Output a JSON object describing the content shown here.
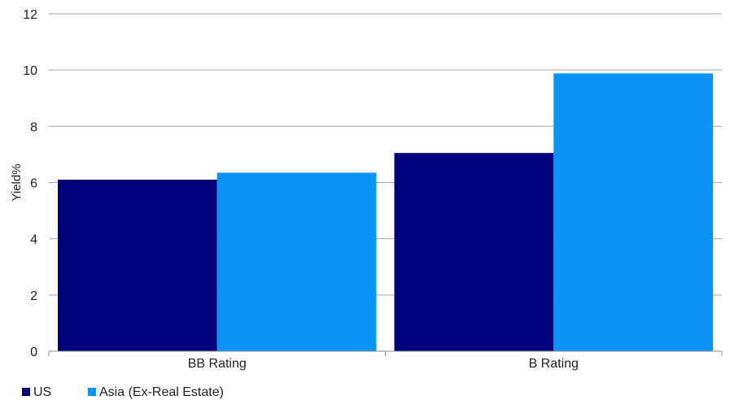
{
  "chart_data": {
    "type": "bar",
    "categories": [
      "BB Rating",
      "B Rating"
    ],
    "series": [
      {
        "name": "US",
        "values": [
          6.1,
          7.05
        ],
        "color": "#00007a"
      },
      {
        "name": "Asia (Ex-Real Estate)",
        "values": [
          6.35,
          9.88
        ],
        "color": "#0a94f7"
      }
    ],
    "title": "",
    "xlabel": "",
    "ylabel": "Yield%",
    "ylim": [
      0,
      12
    ],
    "yticks": [
      0,
      2,
      4,
      6,
      8,
      10,
      12
    ],
    "grid": true,
    "legend": "bottom-left"
  }
}
